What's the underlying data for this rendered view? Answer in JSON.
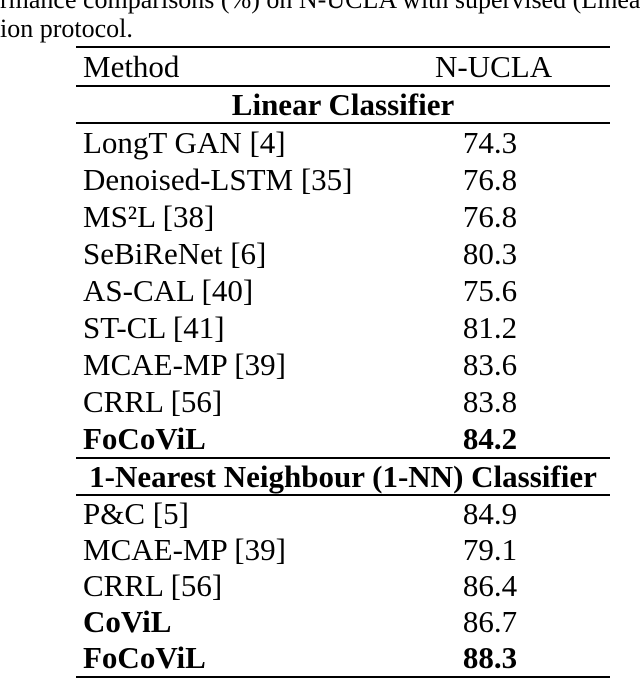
{
  "caption": {
    "line1": "rmance comparisons (%) on N-UCLA with supervised (Linea",
    "line2": "ion protocol."
  },
  "table": {
    "header": {
      "method": "Method",
      "dataset": "N-UCLA"
    },
    "sections": [
      {
        "title": "Linear Classifier",
        "rows": [
          {
            "method": "LongT GAN [4]",
            "value": "74.3"
          },
          {
            "method": "Denoised-LSTM [35]",
            "value": "76.8"
          },
          {
            "method": "MS²L [38]",
            "value": "76.8"
          },
          {
            "method": "SeBiReNet [6]",
            "value": "80.3"
          },
          {
            "method": "AS-CAL [40]",
            "value": "75.6"
          },
          {
            "method": "ST-CL [41]",
            "value": "81.2"
          },
          {
            "method": "MCAE-MP [39]",
            "value": "83.6"
          },
          {
            "method": "CRRL [56]",
            "value": "83.8"
          },
          {
            "method": "FoCoViL",
            "value": "84.2"
          }
        ]
      },
      {
        "title": "1-Nearest Neighbour (1-NN) Classifier",
        "rows": [
          {
            "method": "P&C [5]",
            "value": "84.9"
          },
          {
            "method": "MCAE-MP [39]",
            "value": "79.1"
          },
          {
            "method": "CRRL [56]",
            "value": "86.4"
          },
          {
            "method": "CoViL",
            "value": "86.7"
          },
          {
            "method": "FoCoViL",
            "value": "88.3"
          }
        ]
      }
    ]
  }
}
